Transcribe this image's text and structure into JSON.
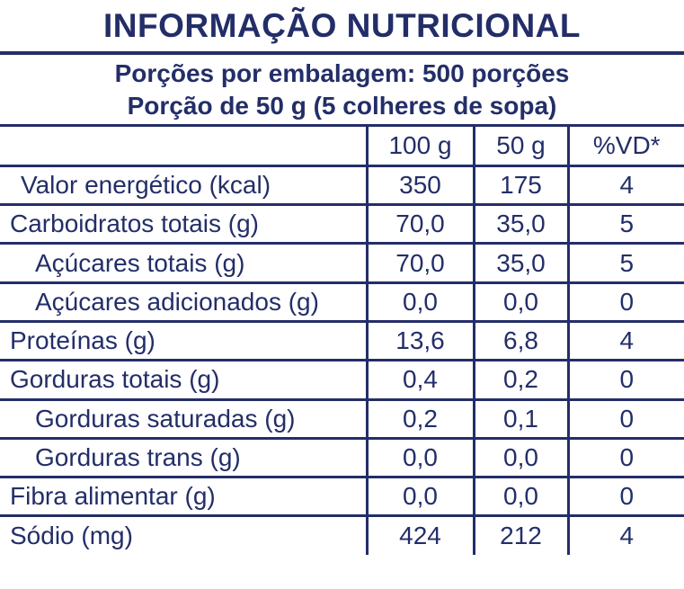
{
  "colors": {
    "ink": "#232e68",
    "background": "#ffffff"
  },
  "title": "INFORMAÇÃO NUTRICIONAL",
  "serving_info": {
    "line1": "Porções por embalagem: 500 porções",
    "line2": "Porção de 50 g (5 colheres de sopa)"
  },
  "chart_data": {
    "type": "table",
    "title": "INFORMAÇÃO NUTRICIONAL",
    "columns": [
      "",
      "100 g",
      "50 g",
      "%VD*"
    ],
    "rows": [
      {
        "label": "Valor energético (kcal)",
        "per_100g": "350",
        "per_50g": "175",
        "vd_percent": "4"
      },
      {
        "label": "Carboidratos totais (g)",
        "per_100g": "70,0",
        "per_50g": "35,0",
        "vd_percent": "5"
      },
      {
        "label": "Açúcares totais (g)",
        "per_100g": "70,0",
        "per_50g": "35,0",
        "vd_percent": "5"
      },
      {
        "label": "Açúcares adicionados (g)",
        "per_100g": "0,0",
        "per_50g": "0,0",
        "vd_percent": "0"
      },
      {
        "label": "Proteínas (g)",
        "per_100g": "13,6",
        "per_50g": "6,8",
        "vd_percent": "4"
      },
      {
        "label": "Gorduras totais (g)",
        "per_100g": "0,4",
        "per_50g": "0,2",
        "vd_percent": "0"
      },
      {
        "label": "Gorduras saturadas (g)",
        "per_100g": "0,2",
        "per_50g": "0,1",
        "vd_percent": "0"
      },
      {
        "label": "Gorduras trans (g)",
        "per_100g": "0,0",
        "per_50g": "0,0",
        "vd_percent": "0"
      },
      {
        "label": "Fibra alimentar (g)",
        "per_100g": "0,0",
        "per_50g": "0,0",
        "vd_percent": "0"
      },
      {
        "label": "Sódio (mg)",
        "per_100g": "424",
        "per_50g": "212",
        "vd_percent": "4"
      }
    ]
  }
}
